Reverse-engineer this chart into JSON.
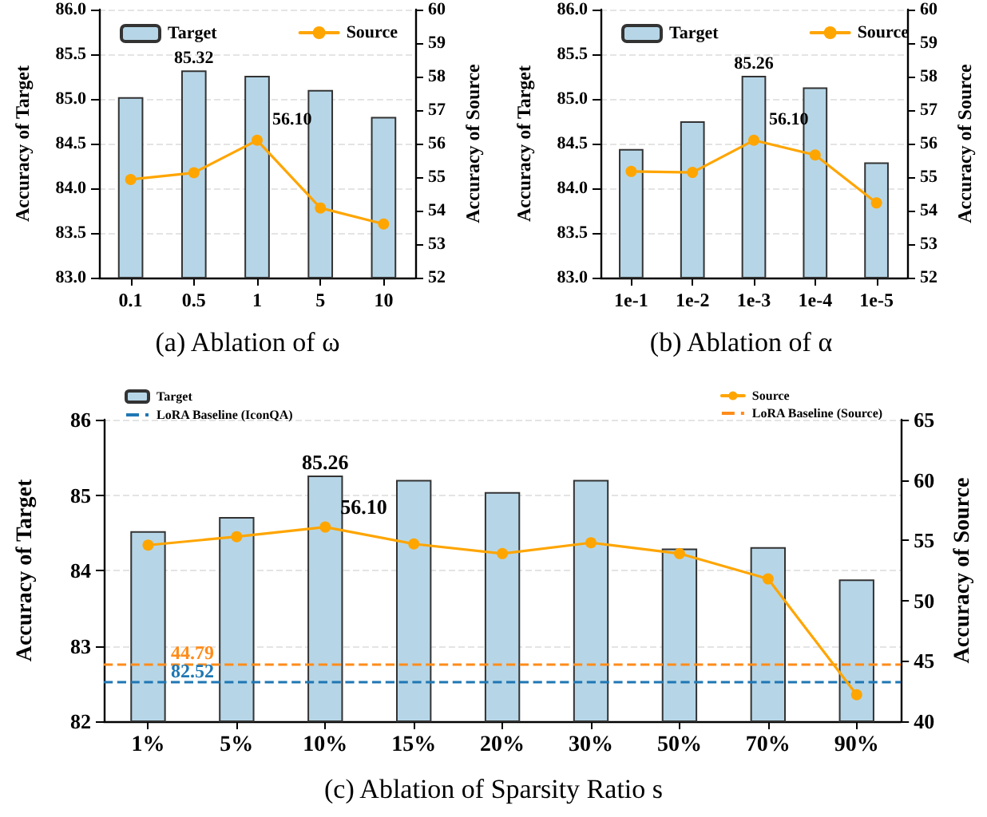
{
  "chart_data": [
    {
      "type": "bar",
      "title": "(a) Ablation of ω",
      "ylabel": "Accuracy of Target",
      "y2label": "Accuracy of Source",
      "categories": [
        "0.1",
        "0.5",
        "1",
        "5",
        "10"
      ],
      "series": [
        {
          "name": "Target",
          "color": "#b6d6e7",
          "values": [
            85.02,
            85.32,
            85.26,
            85.1,
            84.8
          ],
          "value_labels": [
            null,
            "85.32",
            null,
            null,
            null
          ]
        },
        {
          "name": "Source",
          "type": "line",
          "axis": "y2",
          "color": "#ffa500",
          "values": [
            54.93,
            55.13,
            56.1,
            54.08,
            53.6
          ],
          "value_labels": [
            null,
            null,
            "56.10",
            null,
            null
          ]
        }
      ],
      "ylim": [
        83,
        86
      ],
      "yticks": [
        {
          "value": 83,
          "label": "83.0"
        },
        {
          "value": 83.5,
          "label": "83.5"
        },
        {
          "value": 84,
          "label": "84.0"
        },
        {
          "value": 84.5,
          "label": "84.5"
        },
        {
          "value": 85,
          "label": "85.0"
        },
        {
          "value": 85.5,
          "label": "85.5"
        },
        {
          "value": 86,
          "label": "86.0"
        }
      ],
      "y2lim": [
        52,
        60
      ],
      "y2ticks": [
        52,
        53,
        54,
        55,
        56,
        57,
        58,
        59,
        60
      ],
      "grid": "y",
      "legend": "top",
      "marker": "circle",
      "line_style": "solid"
    },
    {
      "type": "bar",
      "title": "(b) Ablation of α",
      "ylabel": "Accuracy of Target",
      "y2label": "Accuracy of Source",
      "categories": [
        "1e-1",
        "1e-2",
        "1e-3",
        "1e-4",
        "1e-5"
      ],
      "series": [
        {
          "name": "Target",
          "color": "#b6d6e7",
          "values": [
            84.44,
            84.75,
            85.26,
            85.13,
            84.29
          ],
          "value_labels": [
            null,
            null,
            "85.26",
            null,
            null
          ]
        },
        {
          "name": "Source",
          "type": "line",
          "axis": "y2",
          "color": "#ffa500",
          "values": [
            55.17,
            55.14,
            56.1,
            55.66,
            54.23
          ],
          "value_labels": [
            null,
            null,
            "56.10",
            null,
            null
          ]
        }
      ],
      "ylim": [
        83,
        86
      ],
      "yticks": [
        {
          "value": 83,
          "label": "83.0"
        },
        {
          "value": 83.5,
          "label": "83.5"
        },
        {
          "value": 84,
          "label": "84.0"
        },
        {
          "value": 84.5,
          "label": "84.5"
        },
        {
          "value": 85,
          "label": "85.0"
        },
        {
          "value": 85.5,
          "label": "85.5"
        },
        {
          "value": 86,
          "label": "86.0"
        }
      ],
      "y2lim": [
        52,
        60
      ],
      "y2ticks": [
        52,
        53,
        54,
        55,
        56,
        57,
        58,
        59,
        60
      ],
      "grid": "y",
      "legend": "top",
      "marker": "circle",
      "line_style": "solid"
    },
    {
      "type": "bar",
      "title": "(c) Ablation of Sparsity Ratio s",
      "ylabel": "Accuracy of Target",
      "y2label": "Accuracy of Source",
      "categories": [
        "1%",
        "5%",
        "10%",
        "15%",
        "20%",
        "30%",
        "50%",
        "70%",
        "90%"
      ],
      "series": [
        {
          "name": "Target",
          "color": "#b6d6e7",
          "values": [
            84.52,
            84.71,
            85.26,
            85.2,
            85.04,
            85.2,
            84.29,
            84.31,
            83.88
          ],
          "value_labels": [
            null,
            null,
            "85.26",
            null,
            null,
            null,
            null,
            null,
            null
          ]
        },
        {
          "name": "Source",
          "type": "line",
          "axis": "y2",
          "color": "#ffa500",
          "values": [
            54.6,
            55.3,
            56.1,
            54.7,
            53.9,
            54.8,
            53.9,
            51.8,
            42.2
          ],
          "value_labels": [
            null,
            null,
            "56.10",
            null,
            null,
            null,
            null,
            null,
            null
          ]
        }
      ],
      "annotations": [
        "82.52",
        "44.79"
      ],
      "ref_lines": [
        {
          "axis": "y",
          "value": 82.52,
          "label": "LoRA Baseline (IconQA)",
          "color": "#1f77b4",
          "line_style": "dashed"
        },
        {
          "axis": "y2",
          "value": 44.79,
          "label": "LoRA Baseline (Source)",
          "color": "#ff8c1a",
          "line_style": "dashed"
        }
      ],
      "ylim": [
        82,
        86
      ],
      "yticks": [
        82,
        83,
        84,
        85,
        86
      ],
      "y2lim": [
        40,
        65
      ],
      "y2ticks": [
        40,
        45,
        50,
        55,
        60,
        65
      ],
      "grid": "y",
      "legend": "top",
      "marker": "circle",
      "line_style": "solid"
    }
  ]
}
